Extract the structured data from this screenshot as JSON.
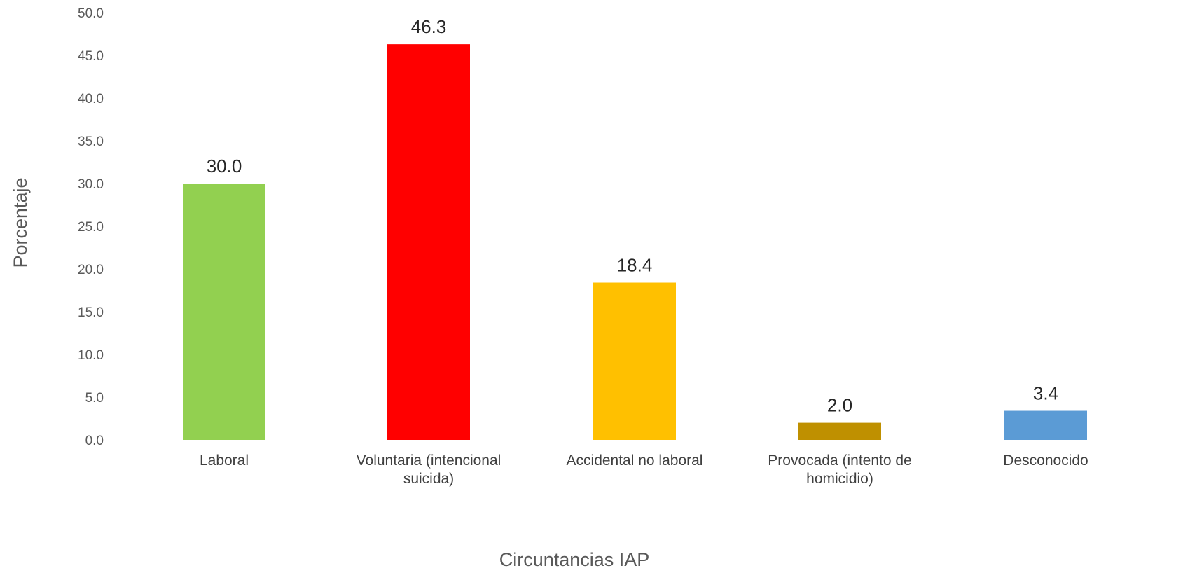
{
  "chart_data": {
    "type": "bar",
    "title": "",
    "xlabel": "Circuntancias IAP",
    "ylabel": "Porcentaje",
    "ylim": [
      0,
      50
    ],
    "yticks": [
      "0.0",
      "5.0",
      "10.0",
      "15.0",
      "20.0",
      "25.0",
      "30.0",
      "35.0",
      "40.0",
      "45.0",
      "50.0"
    ],
    "grid": false,
    "categories": [
      "Laboral",
      "Voluntaria (intencional suicida)",
      "Accidental no laboral",
      "Provocada (intento de homicidio)",
      "Desconocido"
    ],
    "category_lines": [
      [
        "Laboral"
      ],
      [
        "Voluntaria (intencional",
        "suicida)"
      ],
      [
        "Accidental no laboral"
      ],
      [
        "Provocada (intento de",
        "homicidio)"
      ],
      [
        "Desconocido"
      ]
    ],
    "values": [
      30.0,
      46.3,
      18.4,
      2.0,
      3.4
    ],
    "value_labels": [
      "30.0",
      "46.3",
      "18.4",
      "2.0",
      "3.4"
    ],
    "colors": [
      "#92d050",
      "#ff0000",
      "#ffc000",
      "#bf9000",
      "#5b9bd5"
    ]
  }
}
